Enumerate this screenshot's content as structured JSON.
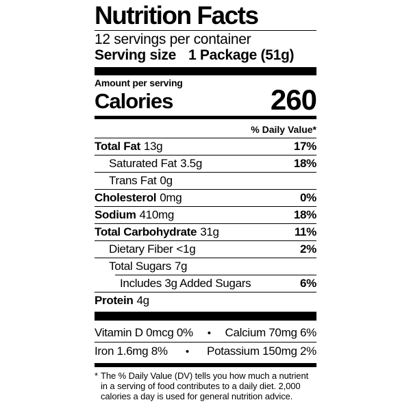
{
  "label": {
    "title": "Nutrition Facts",
    "servings_per_container": "12 servings per container",
    "serving_size": {
      "label": "Serving size",
      "value": "1 Package (51g)"
    },
    "calories_section": {
      "amount_per_serving": "Amount per serving",
      "calories_label": "Calories",
      "calories_value": "260"
    },
    "daily_value_header": "% Daily Value*",
    "nutrients": [
      {
        "name": "Total Fat",
        "amount": "13g",
        "dv": "17%"
      },
      {
        "name": "Saturated Fat",
        "amount": "3.5g",
        "dv": "18%"
      },
      {
        "name": "Trans Fat",
        "amount": "0g",
        "dv": ""
      },
      {
        "name": "Cholesterol",
        "amount": "0mg",
        "dv": "0%"
      },
      {
        "name": "Sodium",
        "amount": "410mg",
        "dv": "18%"
      },
      {
        "name": "Total Carbohydrate",
        "amount": "31g",
        "dv": "11%"
      },
      {
        "name": "Dietary Fiber",
        "amount": "<1g",
        "dv": "2%"
      },
      {
        "name": "Total Sugars",
        "amount": "7g",
        "dv": ""
      },
      {
        "name": "Includes 3g Added Sugars",
        "amount": "",
        "dv": "6%"
      },
      {
        "name": "Protein",
        "amount": "4g",
        "dv": ""
      }
    ],
    "micronutrients": {
      "bullet": "•",
      "rows": [
        {
          "left": "Vitamin D 0mcg 0%",
          "right": "Calcium 70mg 6%"
        },
        {
          "left": "Iron 1.6mg 8%",
          "right": "Potassium 150mg 2%"
        }
      ]
    },
    "footnote": {
      "marker": "*",
      "lines": [
        "The % Daily Value (DV) tells you how much a nutrient",
        "in a serving of food contributes to a daily diet. 2,000",
        "calories a day is used for general nutrition advice."
      ]
    },
    "colors": {
      "text": "#000000",
      "background": "#ffffff"
    }
  }
}
